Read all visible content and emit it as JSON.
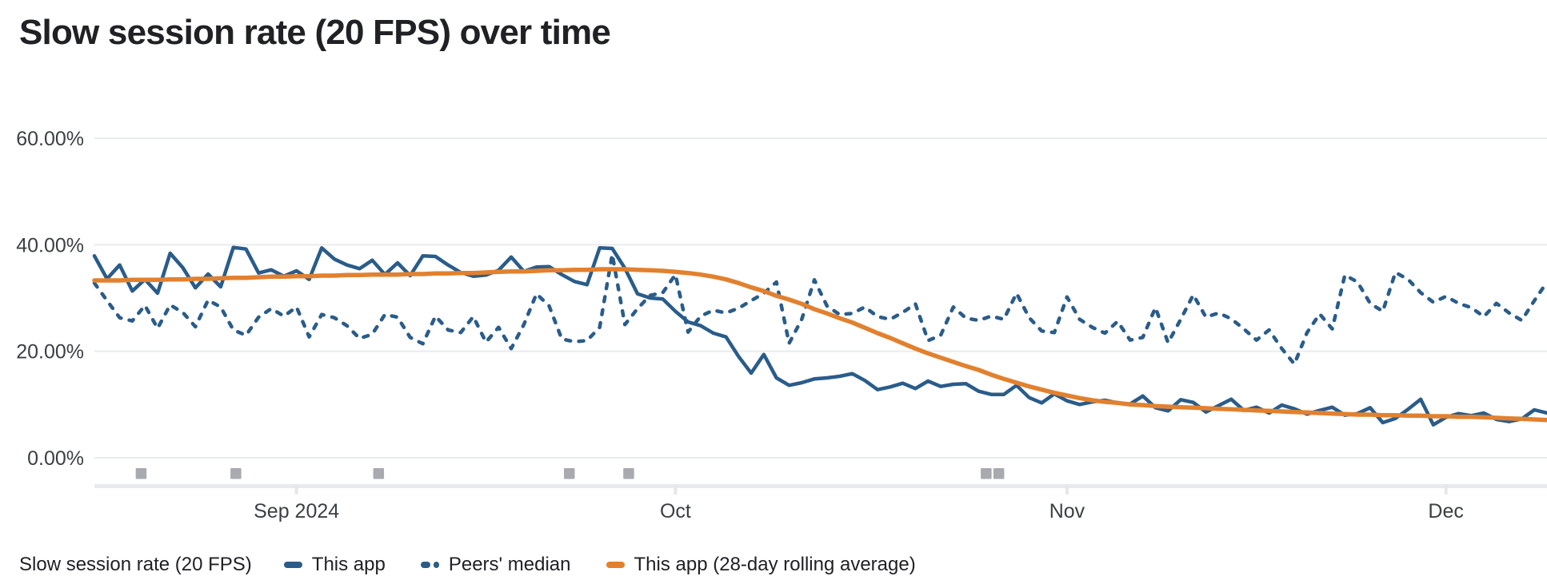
{
  "title": "Slow session rate (20 FPS) over time",
  "colors": {
    "series_blue": "#2a5c8a",
    "series_orange": "#e1812f",
    "gridline": "#e9ebee",
    "axis_band": "#e8eaed",
    "tick_notch": "#e5e7ea",
    "release_marker": "#a7aaae",
    "axis_text": "#3c4043",
    "title_text": "#202124"
  },
  "legend": {
    "group_label": "Slow session rate (20 FPS)",
    "items": [
      {
        "label": "This app",
        "swatch": "solid-blue"
      },
      {
        "label": "Peers' median",
        "swatch": "dashed-blue"
      },
      {
        "label": "This app (28-day rolling average)",
        "swatch": "solid-orange"
      }
    ]
  },
  "chart_data": {
    "type": "line",
    "title": "Slow session rate (20 FPS) over time",
    "unit": "%",
    "grid": "horizontal-only",
    "legend_position": "bottom",
    "y_axis": {
      "min": 0,
      "max": 60,
      "ticks": [
        {
          "label": "0.00%",
          "value": 0
        },
        {
          "label": "20.00%",
          "value": 20
        },
        {
          "label": "40.00%",
          "value": 40
        },
        {
          "label": "60.00%",
          "value": 60
        }
      ]
    },
    "x_axis": {
      "interval": "daily",
      "total_days": 115,
      "ticks": [
        {
          "label": "Sep 2024",
          "day": 16
        },
        {
          "label": "Oct",
          "day": 46
        },
        {
          "label": "Nov",
          "day": 77
        },
        {
          "label": "Dec",
          "day": 107
        }
      ]
    },
    "release_markers": {
      "shape": "square",
      "days": [
        3.7,
        11.2,
        22.5,
        37.6,
        42.3,
        70.6,
        71.6
      ]
    },
    "series": [
      {
        "name": "This app",
        "style": "solid",
        "color": "#2a5c8a",
        "values": [
          37.9,
          33.6,
          36.2,
          31.3,
          33.5,
          30.9,
          38.4,
          35.7,
          31.9,
          34.5,
          32.1,
          39.5,
          39.2,
          34.7,
          35.3,
          34.1,
          35.1,
          33.5,
          39.4,
          37.3,
          36.2,
          35.5,
          37.1,
          34.4,
          36.6,
          34.2,
          37.9,
          37.8,
          36.2,
          34.8,
          34.1,
          34.3,
          35.2,
          37.7,
          35.0,
          35.8,
          35.9,
          34.4,
          33.1,
          32.5,
          39.4,
          39.3,
          35.6,
          30.8,
          30.0,
          29.8,
          27.5,
          25.5,
          24.8,
          23.4,
          22.7,
          19.0,
          15.9,
          19.4,
          15.0,
          13.6,
          14.1,
          14.8,
          15.0,
          15.3,
          15.8,
          14.5,
          12.8,
          13.3,
          14.0,
          13.0,
          14.4,
          13.4,
          13.8,
          13.9,
          12.5,
          11.9,
          11.9,
          13.6,
          11.3,
          10.3,
          12.0,
          10.7,
          10.0,
          10.5,
          10.8,
          10.3,
          10.1,
          11.6,
          9.4,
          8.8,
          10.9,
          10.4,
          8.6,
          9.8,
          11.0,
          8.9,
          9.5,
          8.4,
          9.9,
          9.2,
          8.2,
          8.9,
          9.5,
          8.0,
          8.3,
          9.4,
          6.6,
          7.4,
          9.1,
          11.0,
          6.2,
          7.6,
          8.3,
          7.9,
          8.4,
          7.2,
          6.8,
          7.3,
          9.0,
          8.4
        ]
      },
      {
        "name": "Peers' median",
        "style": "dashed",
        "color": "#2a5c8a",
        "values": [
          32.8,
          29.5,
          26.3,
          25.7,
          28.6,
          24.3,
          28.7,
          27.3,
          24.6,
          29.6,
          28.3,
          24.0,
          23.0,
          26.4,
          28.0,
          26.6,
          28.3,
          22.7,
          26.9,
          26.3,
          24.8,
          22.4,
          23.2,
          26.9,
          26.4,
          22.6,
          21.4,
          26.6,
          24.0,
          23.5,
          26.5,
          21.7,
          24.5,
          20.5,
          25.0,
          30.8,
          28.5,
          22.3,
          21.8,
          22.0,
          24.5,
          38.2,
          25.0,
          28.0,
          30.5,
          31.0,
          34.4,
          23.6,
          26.6,
          27.7,
          27.2,
          28.1,
          29.5,
          30.9,
          33.0,
          21.5,
          26.0,
          33.4,
          28.5,
          26.9,
          27.1,
          28.3,
          26.5,
          26.0,
          27.3,
          28.9,
          22.0,
          23.0,
          28.3,
          26.2,
          25.8,
          26.6,
          26.0,
          30.9,
          26.3,
          23.8,
          23.5,
          30.2,
          26.0,
          24.5,
          23.4,
          25.6,
          22.1,
          22.6,
          28.2,
          21.6,
          26.0,
          30.6,
          26.4,
          27.2,
          26.1,
          24.2,
          22.1,
          24.0,
          20.5,
          17.6,
          23.5,
          27.0,
          24.2,
          34.3,
          33.0,
          29.0,
          27.5,
          34.8,
          33.5,
          31.0,
          29.2,
          30.3,
          29.0,
          28.2,
          26.5,
          29.0,
          27.2,
          25.8,
          29.5,
          33.0
        ]
      },
      {
        "name": "This app (28-day rolling average)",
        "style": "solid",
        "color": "#e1812f",
        "values": [
          33.3,
          33.3,
          33.3,
          33.4,
          33.4,
          33.4,
          33.5,
          33.5,
          33.6,
          33.6,
          33.7,
          33.8,
          33.8,
          33.9,
          34.0,
          34.0,
          34.1,
          34.1,
          34.2,
          34.2,
          34.3,
          34.3,
          34.4,
          34.4,
          34.4,
          34.5,
          34.5,
          34.6,
          34.6,
          34.7,
          34.7,
          34.8,
          34.9,
          35.0,
          35.0,
          35.1,
          35.2,
          35.2,
          35.3,
          35.3,
          35.4,
          35.4,
          35.4,
          35.3,
          35.2,
          35.1,
          34.9,
          34.7,
          34.4,
          34.0,
          33.5,
          32.8,
          32.0,
          31.3,
          30.4,
          29.7,
          28.9,
          27.9,
          27.1,
          26.2,
          25.4,
          24.4,
          23.4,
          22.5,
          21.5,
          20.5,
          19.6,
          18.8,
          18.0,
          17.2,
          16.5,
          15.6,
          14.8,
          14.1,
          13.4,
          12.8,
          12.2,
          11.7,
          11.2,
          10.8,
          10.5,
          10.3,
          10.0,
          9.9,
          9.7,
          9.6,
          9.5,
          9.4,
          9.3,
          9.2,
          9.1,
          9.0,
          8.9,
          8.8,
          8.7,
          8.6,
          8.5,
          8.4,
          8.3,
          8.2,
          8.1,
          8.1,
          8.0,
          8.0,
          7.9,
          7.9,
          7.8,
          7.8,
          7.7,
          7.7,
          7.6,
          7.5,
          7.4,
          7.3,
          7.2,
          7.1
        ]
      }
    ]
  }
}
